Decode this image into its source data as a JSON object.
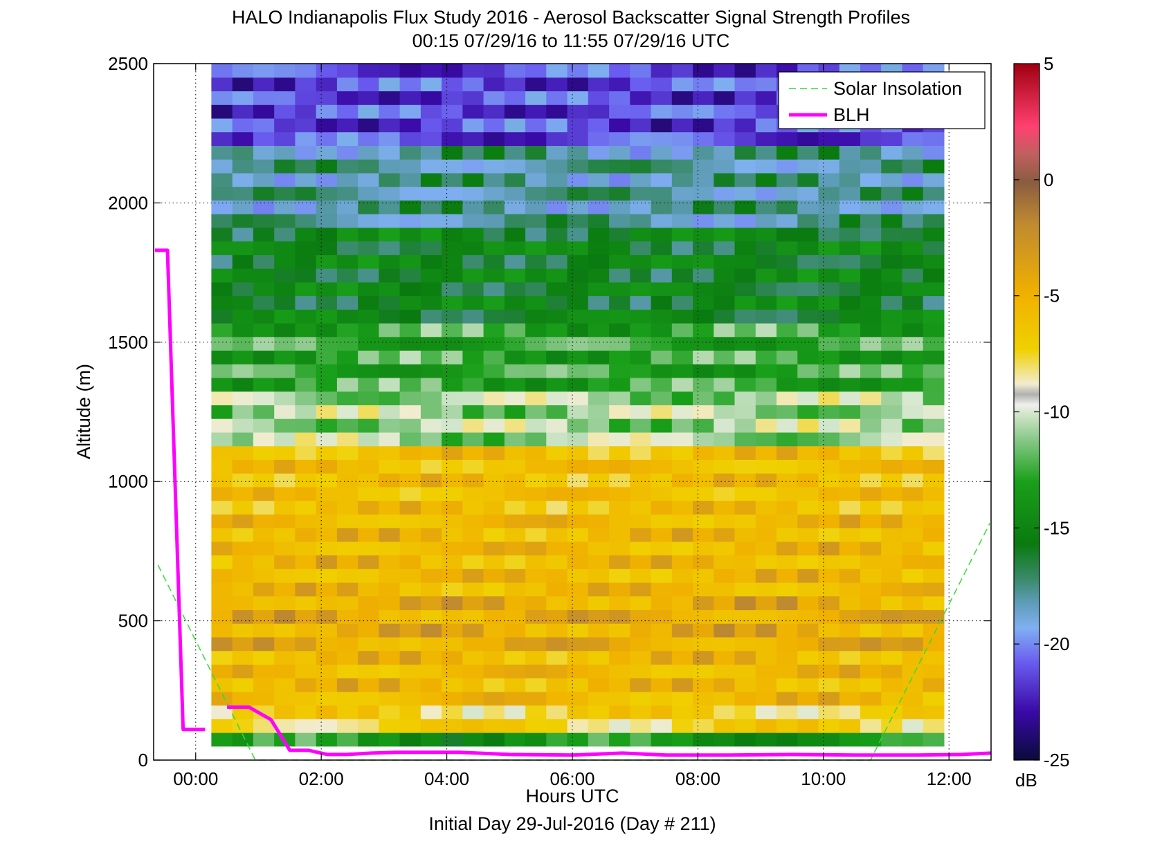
{
  "chart_data": {
    "type": "heatmap",
    "title": "HALO Indianapolis Flux Study 2016 - Aerosol Backscatter Signal Strength Profiles",
    "subtitle": "00:15 07/29/16 to 11:55 07/29/16  UTC",
    "xlabel": "Hours UTC",
    "xlabel2": "Initial Day 29-Jul-2016 (Day # 211)",
    "ylabel": "Altitude (m)",
    "xlim": [
      -0.67,
      12.67
    ],
    "ylim": [
      0,
      2500
    ],
    "x_ticks": [
      0,
      2,
      4,
      6,
      8,
      10,
      12
    ],
    "x_tick_labels": [
      "00:00",
      "02:00",
      "04:00",
      "06:00",
      "08:00",
      "10:00",
      "12:00"
    ],
    "y_ticks": [
      0,
      500,
      1000,
      1500,
      2000,
      2500
    ],
    "y_tick_labels": [
      "0",
      "500",
      "1000",
      "1500",
      "2000",
      "2500"
    ],
    "grid": "dotted",
    "colorbar": {
      "min": -25,
      "max": 5,
      "ticks": [
        5,
        0,
        -5,
        -10,
        -15,
        -20,
        -25
      ],
      "tick_labels": [
        "5",
        "0",
        "-5",
        "-10",
        "-15",
        "-20",
        "-25"
      ],
      "unit": "dB"
    },
    "heatmap": {
      "x_start": 0.25,
      "x_end": 11.92,
      "columns": 35,
      "y_start": 50,
      "y_end": 2500,
      "rows": 50,
      "layers": [
        {
          "top": 100,
          "value": -14
        },
        {
          "top": 200,
          "value": -8
        },
        {
          "top": 380,
          "value": -6
        },
        {
          "top": 600,
          "value": -5.2
        },
        {
          "top": 900,
          "value": -6
        },
        {
          "top": 1150,
          "value": -6.5
        },
        {
          "top": 1300,
          "value": -11
        },
        {
          "top": 1550,
          "value": -13
        },
        {
          "top": 1900,
          "value": -15.5
        },
        {
          "top": 2200,
          "value": -18
        },
        {
          "top": 2500,
          "value": -21.5
        }
      ]
    },
    "series": [
      {
        "name": "Solar Insolation",
        "style": "dashed",
        "color": "#33dd33",
        "points": [
          [
            -0.6,
            700
          ],
          [
            0.95,
            0
          ],
          [
            10.75,
            0
          ],
          [
            12.65,
            850
          ]
        ]
      },
      {
        "name": "BLH",
        "style": "solid",
        "color": "#ff00ff",
        "points": [
          [
            -0.65,
            1830
          ],
          [
            -0.45,
            1830
          ],
          [
            -0.2,
            110
          ],
          [
            0.15,
            110
          ],
          [
            null,
            null
          ],
          [
            0.5,
            190
          ],
          [
            0.85,
            190
          ],
          [
            1.2,
            145
          ],
          [
            1.5,
            35
          ],
          [
            1.8,
            35
          ],
          [
            2.1,
            20
          ],
          [
            2.4,
            20
          ],
          [
            2.8,
            25
          ],
          [
            3.2,
            28
          ],
          [
            4.2,
            28
          ],
          [
            5.0,
            20
          ],
          [
            6.0,
            18
          ],
          [
            6.8,
            25
          ],
          [
            7.5,
            18
          ],
          [
            8.5,
            18
          ],
          [
            9.5,
            20
          ],
          [
            10.5,
            18
          ],
          [
            11.5,
            18
          ],
          [
            12.2,
            20
          ],
          [
            12.67,
            25
          ]
        ]
      }
    ],
    "legend_position": "top-right",
    "colors": {
      "blh": "#ff00ff",
      "solar": "#33dd33"
    }
  }
}
